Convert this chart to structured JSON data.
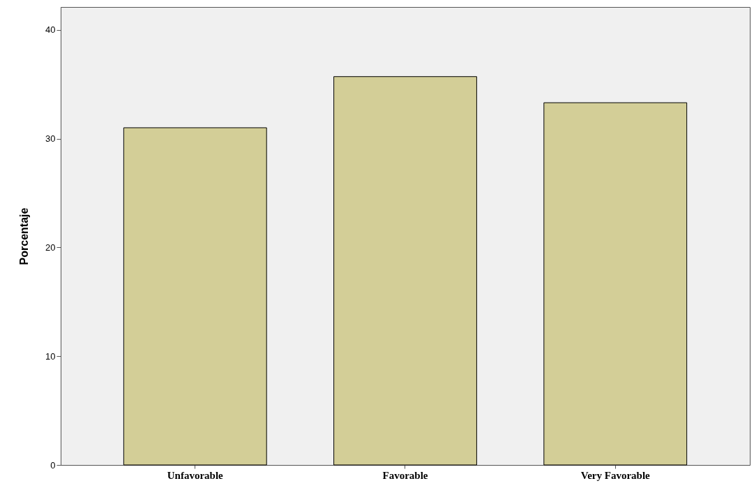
{
  "chart_data": {
    "type": "bar",
    "ylabel": "Porcentaje",
    "categories": [
      "Unfavorable",
      "Favorable",
      "Very Favorable"
    ],
    "values": [
      31.0,
      35.7,
      33.3
    ],
    "color": "#d3ce97",
    "ylim": [
      0,
      42.1
    ],
    "yticks": [
      0,
      10,
      20,
      30,
      40
    ]
  }
}
